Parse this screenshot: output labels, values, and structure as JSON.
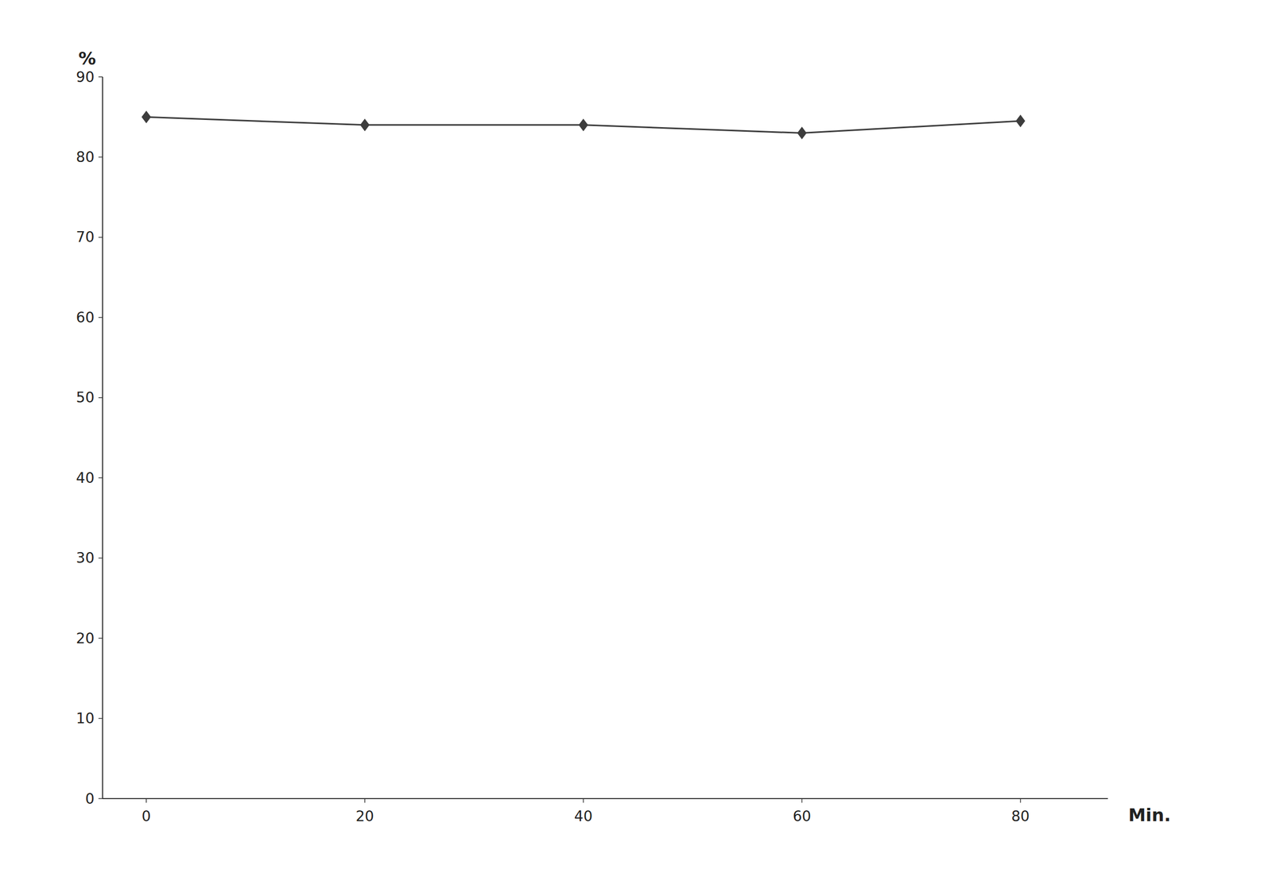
{
  "chart_data": {
    "type": "line",
    "x": [
      0,
      20,
      40,
      60,
      80
    ],
    "values": [
      85.0,
      84.0,
      84.0,
      83.0,
      84.5
    ],
    "color": "#3d3d3d",
    "marker": "diamond",
    "xlabel": "Min.",
    "ylabel": "%",
    "xlim": [
      -4,
      88
    ],
    "ylim": [
      0,
      90
    ],
    "xticks": [
      0,
      20,
      40,
      60,
      80
    ],
    "yticks": [
      0,
      10,
      20,
      30,
      40,
      50,
      60,
      70,
      80,
      90
    ],
    "grid": false
  }
}
